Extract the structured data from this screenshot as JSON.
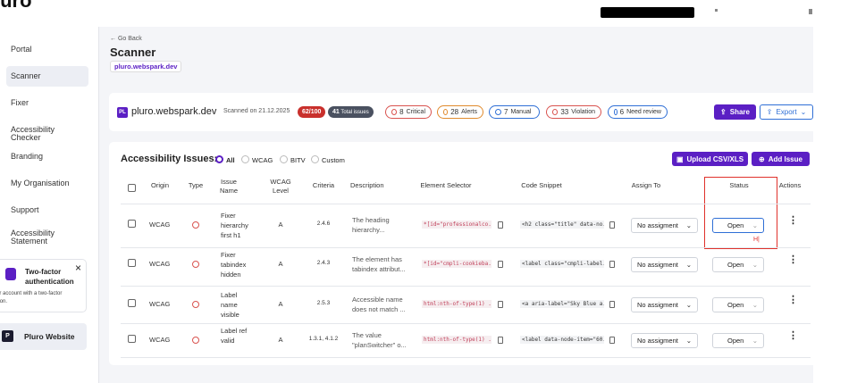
{
  "logo": "luro",
  "sidebar": {
    "nav": [
      "Portal",
      "Scanner",
      "Fixer",
      "Accessibility Checker",
      "Branding",
      "My Organisation",
      "Support",
      "Accessibility Statement"
    ],
    "two_factor": {
      "title": "Two-factor authentication",
      "text": "Secure your account with a two-factor authentication."
    },
    "website": {
      "icon": "P",
      "name": "Pluro Website"
    }
  },
  "header": {
    "back": "← Go Back",
    "title": "Scanner",
    "site": "pluro.webspark.dev"
  },
  "site_bar": {
    "icon": "PL",
    "site": "pluro.webspark.dev",
    "scanned": "Scanned on 21.12.2025",
    "score": "62/100",
    "total": {
      "count": "41",
      "label": "Total issues"
    },
    "badges": [
      {
        "count": "8",
        "label": "Critical"
      },
      {
        "count": "28",
        "label": "Alerts"
      },
      {
        "count": "7",
        "label": "Manual"
      },
      {
        "count": "33",
        "label": "Violation"
      },
      {
        "count": "6",
        "label": "Need review"
      }
    ],
    "share": "Share",
    "export": "Export"
  },
  "issues": {
    "title": "Accessibility Issues:",
    "filters": [
      "All",
      "WCAG",
      "BITV",
      "Custom"
    ],
    "upload": "Upload CSV/XLS",
    "add": "Add Issue"
  },
  "table": {
    "columns": [
      "Origin",
      "Type",
      "Issue Name",
      "WCAG Level",
      "Criteria",
      "Description",
      "Element Selector",
      "Code Snippet",
      "Assign To",
      "Status",
      "Actions"
    ],
    "rows": [
      [
        "WCAG",
        "Fixer hierarchy first h1",
        "A",
        "2.4.6",
        "The heading hierarchy...",
        "*[id=\"professionalco...",
        "<h2 class=\"title\" data-no...",
        "No assigment",
        "Open"
      ],
      [
        "WCAG",
        "Fixer tabindex hidden",
        "A",
        "2.4.3",
        "The element has tabindex attribut...",
        "*[id=\"cmpli-cookieba...",
        "<label class=\"cmpli-label...",
        "No assigment",
        "Open"
      ],
      [
        "WCAG",
        "Label name visible",
        "A",
        "2.5.3",
        "Accessible name does not match ...",
        "html:nth-of-type(1) ...",
        "<a aria-label=\"Sky Blue a...",
        "No assigment",
        "Open"
      ],
      [
        "WCAG",
        "Label ref valid",
        "A",
        "1.3.1, 4.1.2",
        "The value \"planSwitcher\" o...",
        "html:nth-of-type(1) ...",
        "<label data-node-item=\"60...",
        "No assigment",
        "Open"
      ]
    ]
  },
  "annotation": "H|"
}
